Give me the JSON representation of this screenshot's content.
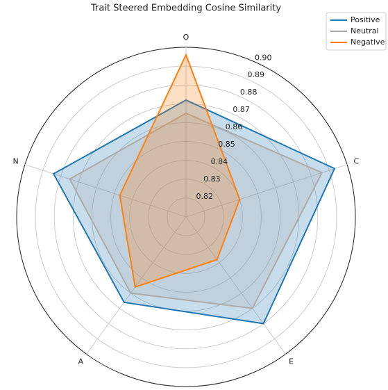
{
  "chart_data": {
    "type": "radar",
    "title": "Trait Steered Embedding Cosine Similarity",
    "categories": [
      "O",
      "C",
      "E",
      "A",
      "N"
    ],
    "series": [
      {
        "name": "Positive",
        "color": "#1f77b4",
        "values": [
          0.872,
          0.893,
          0.88,
          0.866,
          0.884
        ]
      },
      {
        "name": "Neutral",
        "color": "#aaaaaa",
        "values": [
          0.865,
          0.886,
          0.87,
          0.86,
          0.875
        ]
      },
      {
        "name": "Negative",
        "color": "#ff7f0e",
        "values": [
          0.896,
          0.84,
          0.838,
          0.856,
          0.847
        ]
      }
    ],
    "rlim": [
      0.81,
      0.9
    ],
    "rticks": [
      0.82,
      0.83,
      0.84,
      0.85,
      0.86,
      0.87,
      0.88,
      0.89,
      {
        "value": 0.9,
        "label": "0.90"
      }
    ],
    "grid": true,
    "legend": "upper right"
  }
}
